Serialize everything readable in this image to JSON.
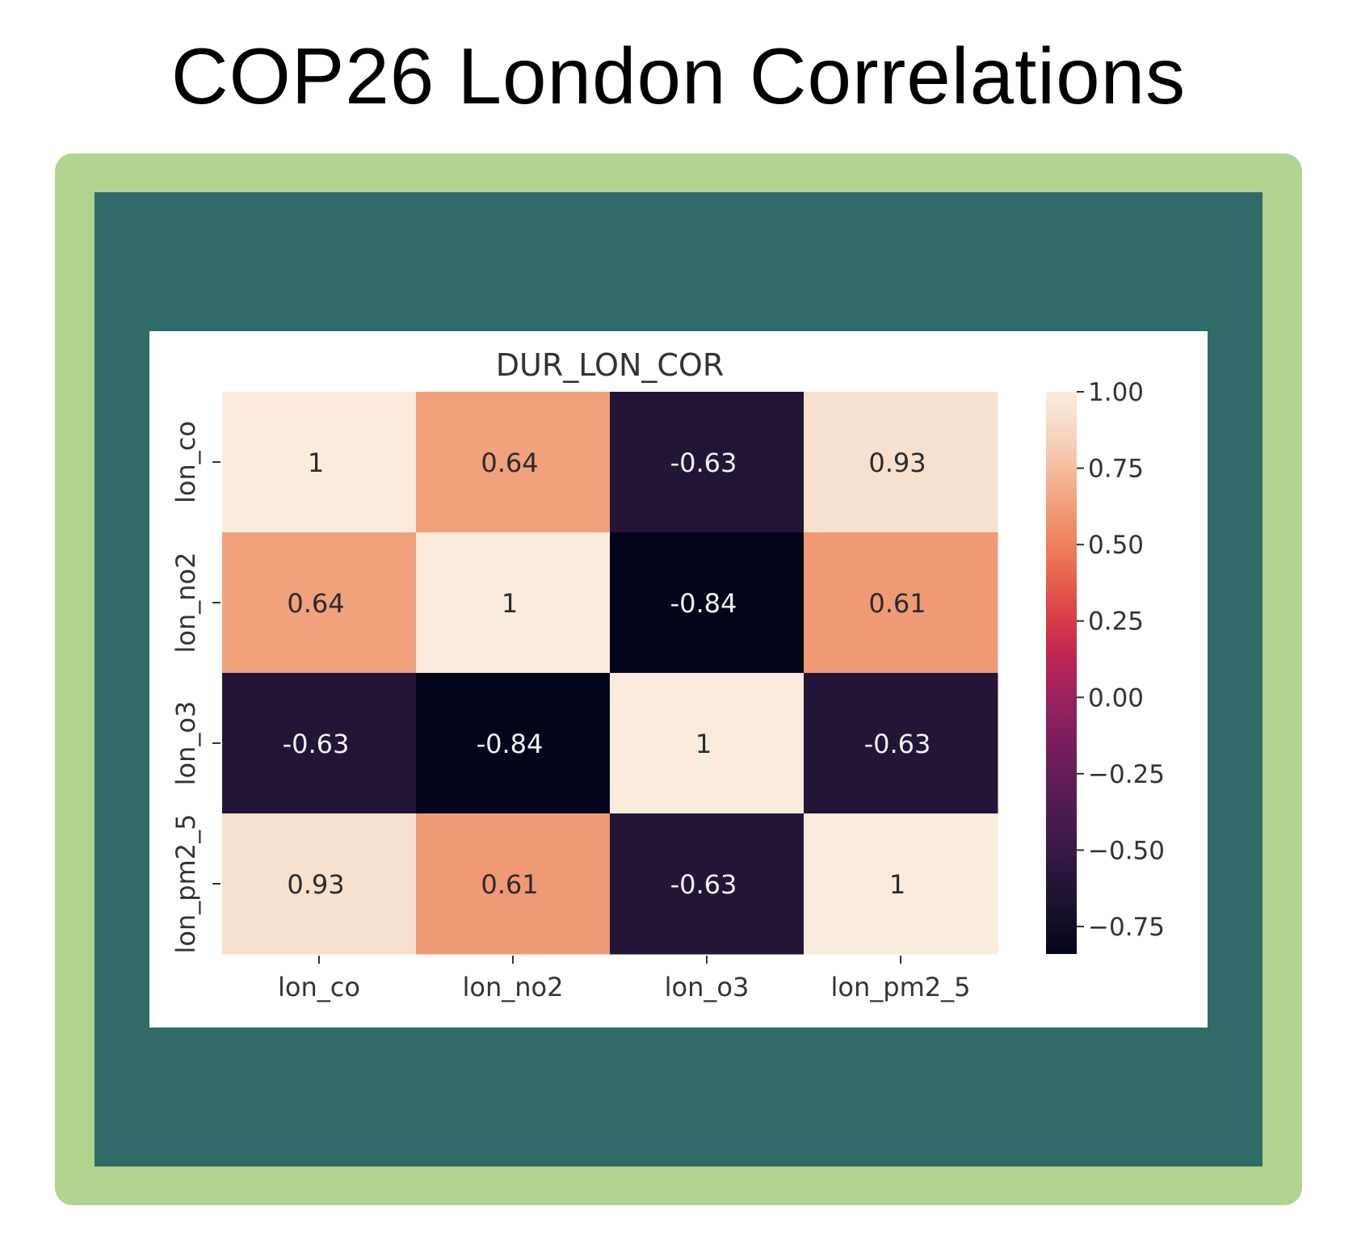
{
  "page": {
    "title": "COP26 London Correlations"
  },
  "colors": {
    "frame": "#b0d38d",
    "panel": "#306a69",
    "card": "#ffffff"
  },
  "chart_data": {
    "type": "heatmap",
    "title": "DUR_LON_COR",
    "x_labels": [
      "lon_co",
      "lon_no2",
      "lon_o3",
      "lon_pm2_5"
    ],
    "y_labels": [
      "lon_co",
      "lon_no2",
      "lon_o3",
      "lon_pm2_5"
    ],
    "values": [
      [
        1,
        0.64,
        -0.63,
        0.93
      ],
      [
        0.64,
        1,
        -0.84,
        0.61
      ],
      [
        -0.63,
        -0.84,
        1,
        -0.63
      ],
      [
        0.93,
        0.61,
        -0.63,
        1
      ]
    ],
    "annotations": [
      [
        "1",
        "0.64",
        "-0.63",
        "0.93"
      ],
      [
        "0.64",
        "1",
        "-0.84",
        "0.61"
      ],
      [
        "-0.63",
        "-0.84",
        "1",
        "-0.63"
      ],
      [
        "0.93",
        "0.61",
        "-0.63",
        "1"
      ]
    ],
    "colorbar": {
      "range": [
        -0.84,
        1
      ],
      "ticks": [
        1.0,
        0.75,
        0.5,
        0.25,
        0.0,
        -0.25,
        -0.5,
        -0.75
      ],
      "tick_labels": [
        "1.00",
        "0.75",
        "0.50",
        "0.25",
        "0.00",
        "−0.25",
        "−0.50",
        "−0.75"
      ],
      "colormap": "rocket"
    },
    "grid": false
  }
}
